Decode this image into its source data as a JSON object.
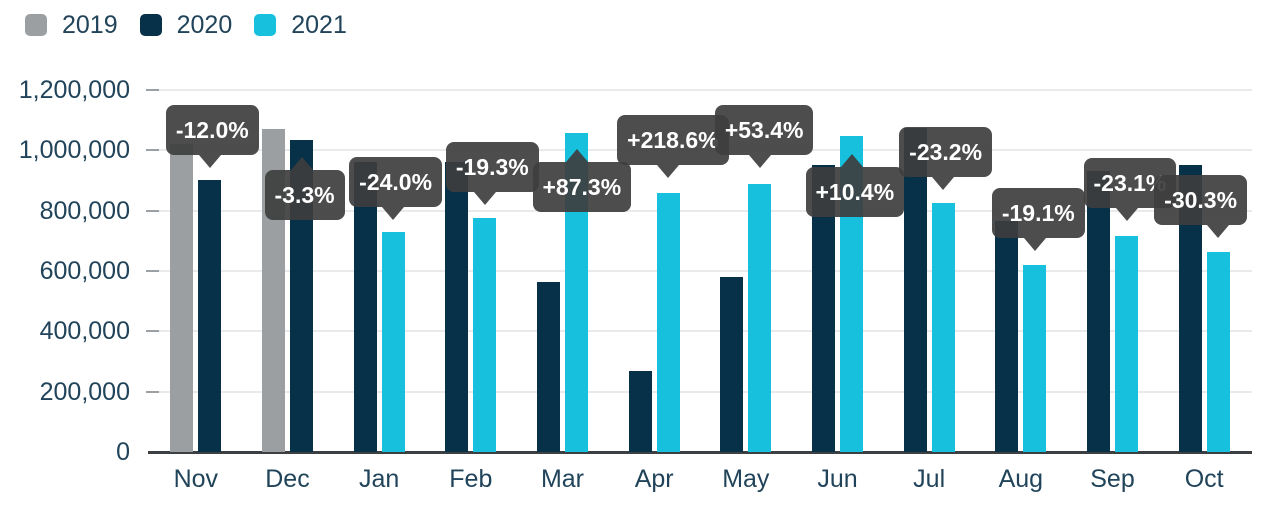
{
  "legend": {
    "items": [
      {
        "label": "2019",
        "color": "#9b9fa2"
      },
      {
        "label": "2020",
        "color": "#073049"
      },
      {
        "label": "2021",
        "color": "#17c0dc"
      }
    ]
  },
  "colors": {
    "axis_text": "#21445a",
    "gridline": "#e8eaec",
    "baseline": "#3d4043",
    "tooltip_bg": "#3e3e3e",
    "tooltip_text": "#ffffff"
  },
  "chart_data": {
    "type": "bar",
    "title": "",
    "xlabel": "",
    "ylabel": "",
    "ylim": [
      0,
      1200000
    ],
    "grid": true,
    "legend_position": "top-left",
    "y_ticks": [
      "0",
      "200,000",
      "400,000",
      "600,000",
      "800,000",
      "1,000,000",
      "1,200,000"
    ],
    "categories": [
      "Nov",
      "Dec",
      "Jan",
      "Feb",
      "Mar",
      "Apr",
      "May",
      "Jun",
      "Jul",
      "Aug",
      "Sep",
      "Oct"
    ],
    "series": [
      {
        "name": "2019",
        "color": "#9b9fa2",
        "values": [
          1022000,
          1070000,
          null,
          null,
          null,
          null,
          null,
          null,
          null,
          null,
          null,
          null
        ]
      },
      {
        "name": "2020",
        "color": "#073049",
        "values": [
          900000,
          1035000,
          960000,
          960000,
          565000,
          270000,
          580000,
          950000,
          1074000,
          765000,
          930000,
          950000
        ]
      },
      {
        "name": "2021",
        "color": "#17c0dc",
        "values": [
          null,
          null,
          730000,
          775000,
          1058000,
          860000,
          890000,
          1049000,
          825000,
          619000,
          715000,
          662000
        ]
      }
    ],
    "annotations": [
      {
        "category": "Nov",
        "label": "-12.0%",
        "pointer": "down",
        "top": 105,
        "tail_offset": 44
      },
      {
        "category": "Dec",
        "label": "-3.3%",
        "pointer": "up",
        "top": 170,
        "tail_offset": 37
      },
      {
        "category": "Jan",
        "label": "-24.0%",
        "pointer": "down",
        "top": 157,
        "tail_offset": 44
      },
      {
        "category": "Feb",
        "label": "-19.3%",
        "pointer": "down",
        "top": 142,
        "tail_offset": 39
      },
      {
        "category": "Mar",
        "label": "+87.3%",
        "pointer": "up",
        "top": 162,
        "tail_offset": 44
      },
      {
        "category": "Apr",
        "label": "+218.6%",
        "pointer": "down",
        "top": 115,
        "tail_offset": 51
      },
      {
        "category": "May",
        "label": "+53.4%",
        "pointer": "down",
        "top": 105,
        "tail_offset": 45
      },
      {
        "category": "Jun",
        "label": "+10.4%",
        "pointer": "up",
        "top": 167,
        "tail_offset": 46
      },
      {
        "category": "Jul",
        "label": "-23.2%",
        "pointer": "down",
        "top": 127,
        "tail_offset": 44
      },
      {
        "category": "Aug",
        "label": "-19.1%",
        "pointer": "down",
        "top": 188,
        "tail_offset": 43
      },
      {
        "category": "Sep",
        "label": "-23.1%",
        "pointer": "down",
        "top": 158,
        "tail_offset": 43
      },
      {
        "category": "Oct",
        "label": "-30.3%",
        "pointer": "down",
        "top": 175,
        "tail_offset": 64
      }
    ]
  }
}
